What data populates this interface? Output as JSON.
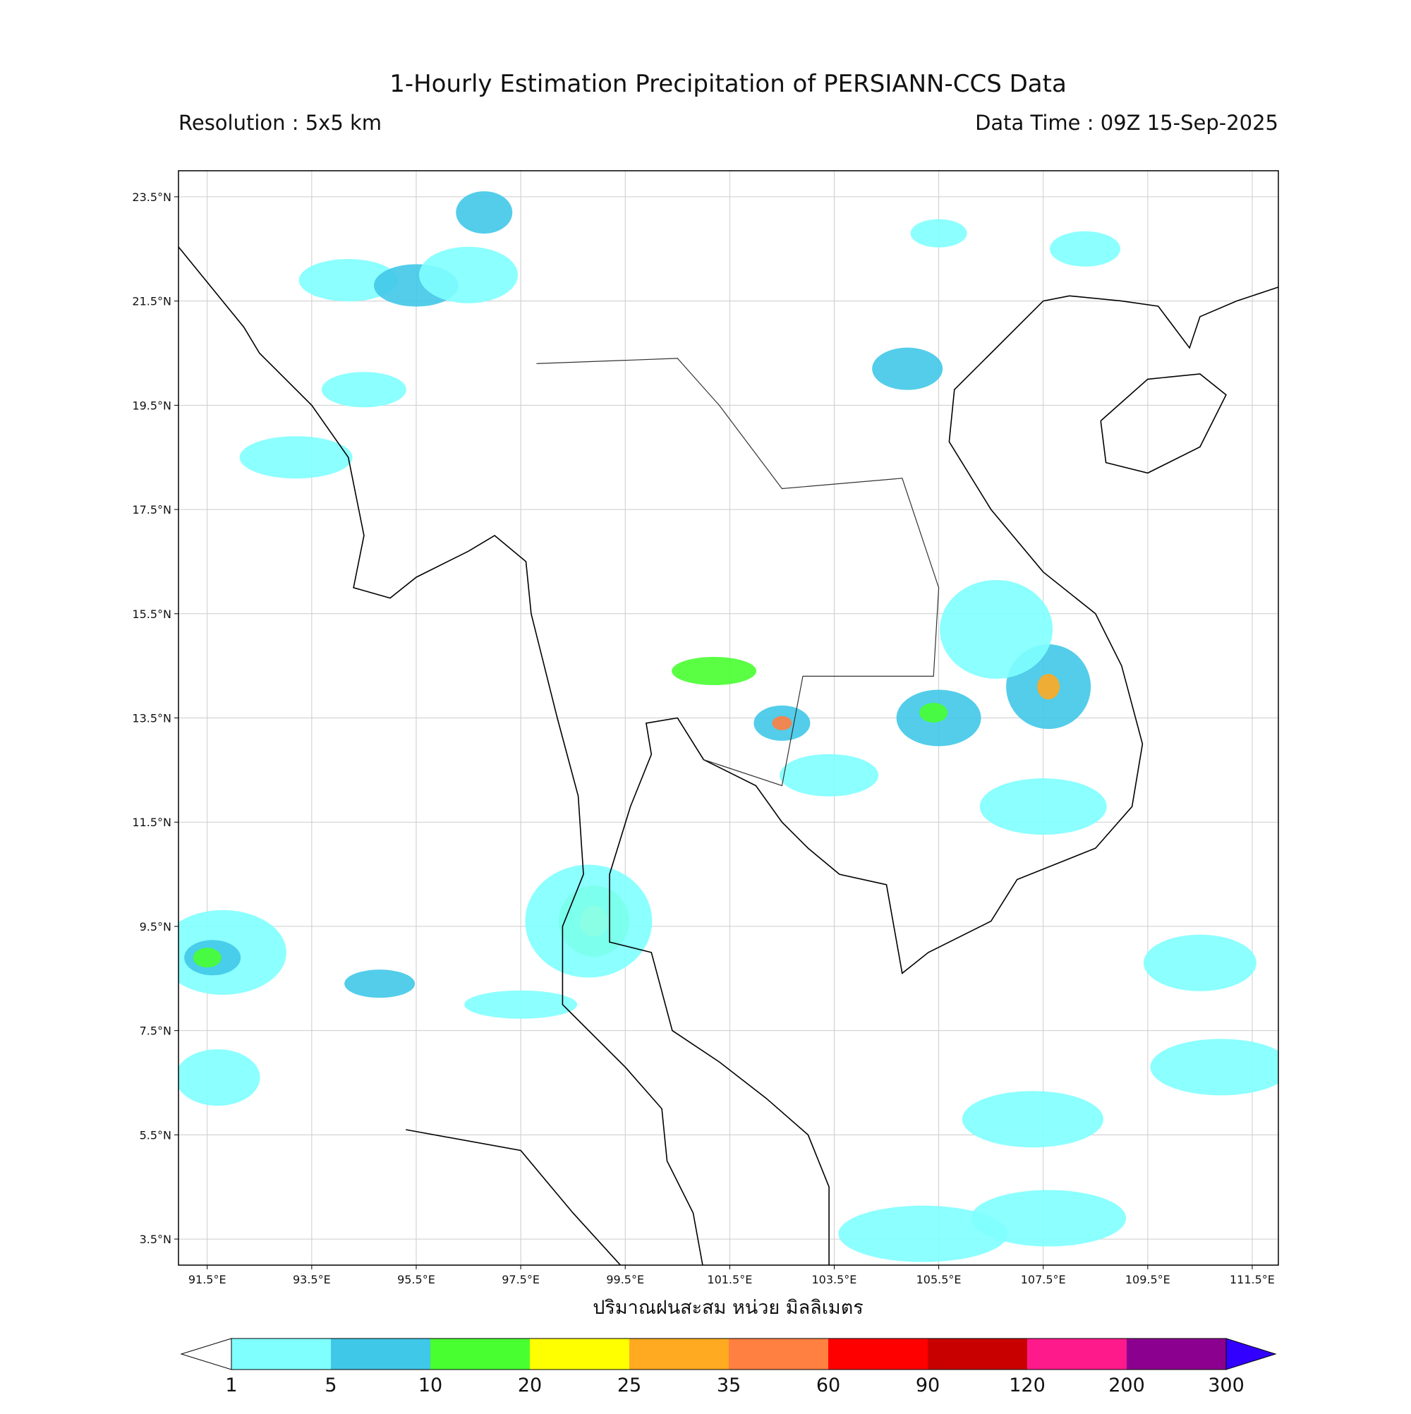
{
  "chart_data": {
    "type": "map",
    "title": "1-Hourly Estimation Precipitation of PERSIANN-CCS Data",
    "subtitle_left": "Resolution : 5x5 km",
    "subtitle_right": "Data Time : 09Z 15-Sep-2025",
    "xlabel": "ปริมาณฝนสะสม หน่วย มิลลิเมตร",
    "xlim": [
      90.95,
      112.0
    ],
    "ylim": [
      3.0,
      24.0
    ],
    "xticks": [
      {
        "value": 91.5,
        "label": "91.5°E"
      },
      {
        "value": 93.5,
        "label": "93.5°E"
      },
      {
        "value": 95.5,
        "label": "95.5°E"
      },
      {
        "value": 97.5,
        "label": "97.5°E"
      },
      {
        "value": 99.5,
        "label": "99.5°E"
      },
      {
        "value": 101.5,
        "label": "101.5°E"
      },
      {
        "value": 103.5,
        "label": "103.5°E"
      },
      {
        "value": 105.5,
        "label": "105.5°E"
      },
      {
        "value": 107.5,
        "label": "107.5°E"
      },
      {
        "value": 109.5,
        "label": "109.5°E"
      },
      {
        "value": 111.5,
        "label": "111.5°E"
      }
    ],
    "yticks": [
      {
        "value": 3.5,
        "label": "3.5°N"
      },
      {
        "value": 5.5,
        "label": "5.5°N"
      },
      {
        "value": 7.5,
        "label": "7.5°N"
      },
      {
        "value": 9.5,
        "label": "9.5°N"
      },
      {
        "value": 11.5,
        "label": "11.5°N"
      },
      {
        "value": 13.5,
        "label": "13.5°N"
      },
      {
        "value": 15.5,
        "label": "15.5°N"
      },
      {
        "value": 17.5,
        "label": "17.5°N"
      },
      {
        "value": 19.5,
        "label": "19.5°N"
      },
      {
        "value": 21.5,
        "label": "21.5°N"
      },
      {
        "value": 23.5,
        "label": "23.5°N"
      }
    ],
    "grid": true,
    "colorbar": {
      "levels": [
        1,
        5,
        10,
        20,
        25,
        35,
        60,
        90,
        120,
        200,
        300
      ],
      "colors": [
        "#ffffff",
        "#80ffff",
        "#40c8e8",
        "#48ff30",
        "#ffff00",
        "#ffaa20",
        "#ff8040",
        "#ff0000",
        "#c80000",
        "#ff1a8c",
        "#8c0090",
        "#3200ff"
      ]
    }
  }
}
